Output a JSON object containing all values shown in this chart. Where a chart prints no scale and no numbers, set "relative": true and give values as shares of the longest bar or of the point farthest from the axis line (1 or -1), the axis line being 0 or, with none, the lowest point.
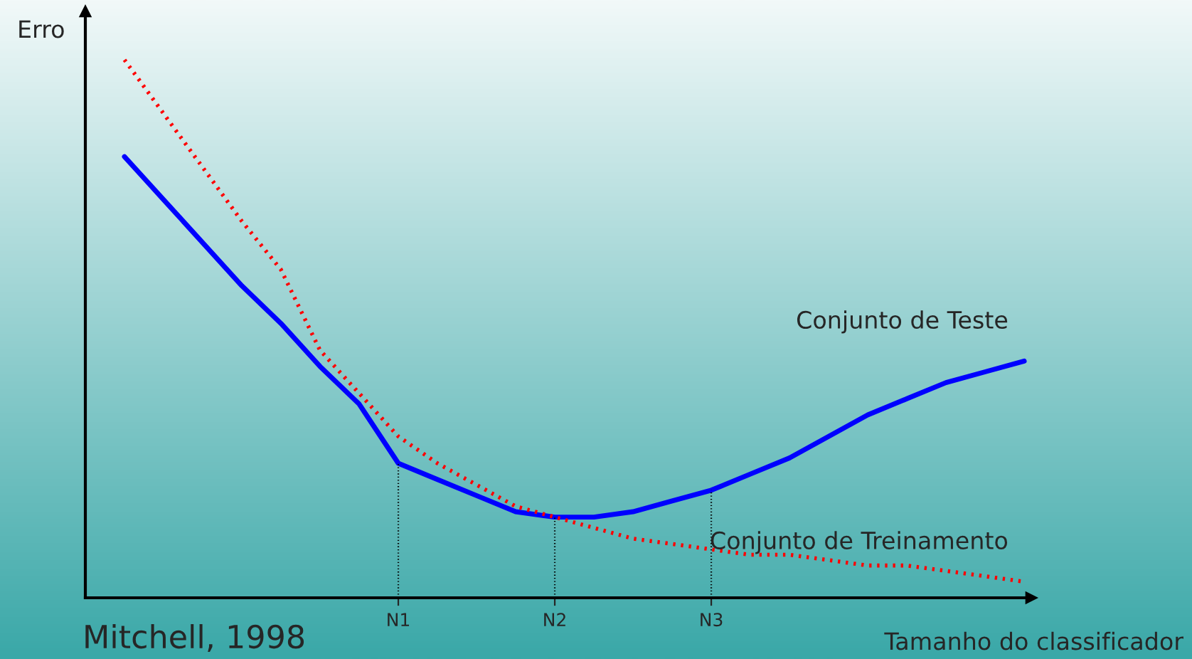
{
  "chart_data": {
    "type": "line",
    "relative": true,
    "xlabel": "Tamanho do classificador",
    "ylabel": "Erro",
    "legend": false,
    "grid": false,
    "marker": "none",
    "categories": [
      null,
      null,
      null,
      null,
      null,
      null,
      null,
      null,
      "N1",
      null,
      null,
      null,
      "N2",
      null,
      null,
      null,
      "N3",
      null,
      null,
      null,
      null,
      null,
      null,
      null,
      null
    ],
    "series": [
      {
        "name": "Conjunto de Teste",
        "color": "#0000ff",
        "line_style": "solid",
        "values": [
          null,
          0.82,
          0.74,
          0.66,
          0.58,
          0.51,
          0.43,
          0.36,
          0.25,
          0.22,
          0.19,
          0.16,
          0.15,
          0.15,
          0.16,
          0.18,
          0.2,
          0.23,
          0.26,
          0.3,
          0.34,
          0.37,
          0.4,
          0.42,
          0.44
        ]
      },
      {
        "name": "Conjunto de Treinamento",
        "color": "#ff0000",
        "line_style": "dotted",
        "values": [
          null,
          1,
          0.9,
          0.8,
          0.7,
          0.61,
          0.46,
          0.38,
          0.3,
          0.25,
          0.21,
          0.17,
          0.15,
          0.13,
          0.11,
          0.1,
          0.09,
          0.08,
          0.08,
          0.07,
          0.06,
          0.06,
          0.05,
          0.04,
          0.03
        ]
      }
    ],
    "ref_lines": [
      {
        "axis": "x",
        "value": "N1",
        "line_style": "dotted",
        "color": "#000000"
      },
      {
        "axis": "x",
        "value": "N2",
        "line_style": "dotted",
        "color": "#000000"
      },
      {
        "axis": "x",
        "value": "N3",
        "line_style": "dotted",
        "color": "#000000"
      }
    ],
    "annotations": [
      "Mitchell, 1998"
    ]
  }
}
